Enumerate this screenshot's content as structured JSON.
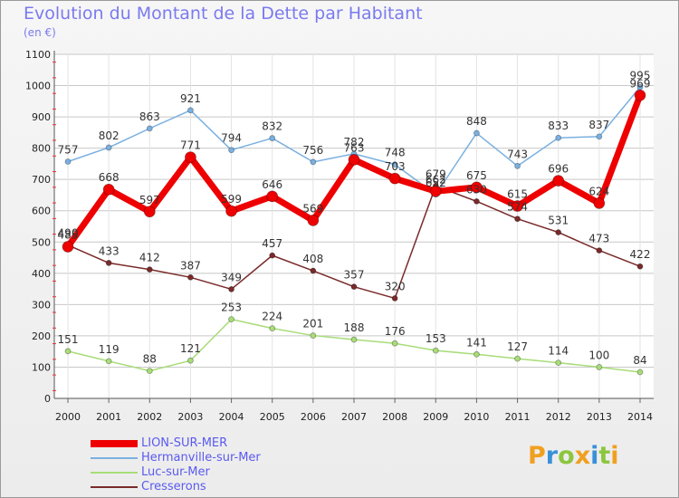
{
  "title": "Evolution du Montant de la Dette par Habitant",
  "subtitle": "(en €)",
  "logo": {
    "text": "Proxiti",
    "letters": [
      {
        "ch": "P",
        "color": "#f0a020"
      },
      {
        "ch": "r",
        "color": "#3a90d8"
      },
      {
        "ch": "o",
        "color": "#8cc63f"
      },
      {
        "ch": "x",
        "color": "#f0a020"
      },
      {
        "ch": "i",
        "color": "#3a90d8"
      },
      {
        "ch": "t",
        "color": "#8cc63f"
      },
      {
        "ch": "i",
        "color": "#f0a020"
      }
    ]
  },
  "chart_data": {
    "type": "line",
    "x": [
      2000,
      2001,
      2002,
      2003,
      2004,
      2005,
      2006,
      2007,
      2008,
      2009,
      2010,
      2011,
      2012,
      2013,
      2014
    ],
    "ylim": [
      0,
      1100
    ],
    "yticks": [
      0,
      100,
      200,
      300,
      400,
      500,
      600,
      700,
      800,
      900,
      1000,
      1100
    ],
    "grid": true,
    "legend_position": "bottom-left",
    "series": [
      {
        "name": "Cresserons",
        "color": "#7a2a2a",
        "width": 1.5,
        "marker": 3,
        "values": [
          490,
          433,
          412,
          387,
          349,
          457,
          408,
          357,
          320,
          679,
          630,
          574,
          531,
          473,
          422
        ],
        "labels": [
          "490",
          "433",
          "412",
          "387",
          "349",
          "457",
          "408",
          "357",
          "320",
          "679",
          "630",
          "574",
          "531",
          "473",
          "422"
        ]
      },
      {
        "name": "Luc-sur-Mer",
        "color": "#a8dc78",
        "width": 1.5,
        "marker": 3,
        "values": [
          151,
          119,
          88,
          121,
          253,
          224,
          201,
          188,
          176,
          153,
          141,
          127,
          114,
          100,
          84
        ],
        "labels": [
          "151",
          "119",
          "88",
          "121",
          "253",
          "224",
          "201",
          "188",
          "176",
          "153",
          "141",
          "127",
          "114",
          "100",
          "84"
        ]
      },
      {
        "name": "Hermanville-sur-Mer",
        "color": "#7ab0e0",
        "width": 1.5,
        "marker": 3,
        "values": [
          757,
          802,
          863,
          921,
          794,
          832,
          756,
          782,
          748,
          652,
          848,
          743,
          833,
          837,
          995
        ],
        "labels": [
          "757",
          "802",
          "863",
          "921",
          "794",
          "832",
          "756",
          "782",
          "748",
          "652",
          "848",
          "743",
          "833",
          "837",
          "995"
        ]
      },
      {
        "name": "LION-SUR-MER",
        "color": "#ee0000",
        "width": 7,
        "marker": 6,
        "values": [
          485,
          668,
          597,
          771,
          599,
          646,
          569,
          763,
          703,
          662,
          675,
          615,
          696,
          624,
          969
        ],
        "labels": [
          "485",
          "668",
          "597",
          "771",
          "599",
          "646",
          "569",
          "763",
          "703",
          "662",
          "675",
          "615",
          "696",
          "624",
          "969"
        ]
      }
    ]
  },
  "legend": [
    {
      "name": "LION-SUR-MER",
      "color": "#ee0000",
      "thickness": 8
    },
    {
      "name": "Hermanville-sur-Mer",
      "color": "#7ab0e0",
      "thickness": 2
    },
    {
      "name": "Luc-sur-Mer",
      "color": "#a8dc78",
      "thickness": 2
    },
    {
      "name": "Cresserons",
      "color": "#7a2a2a",
      "thickness": 2
    }
  ]
}
